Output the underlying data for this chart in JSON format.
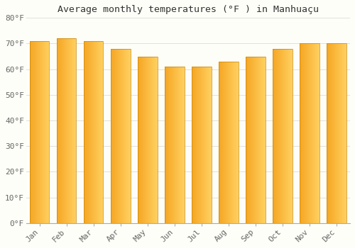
{
  "months": [
    "Jan",
    "Feb",
    "Mar",
    "Apr",
    "May",
    "Jun",
    "Jul",
    "Aug",
    "Sep",
    "Oct",
    "Nov",
    "Dec"
  ],
  "values": [
    71,
    72,
    71,
    68,
    65,
    61,
    61,
    63,
    65,
    68,
    70,
    70
  ],
  "title": "Average monthly temperatures (°F ) in Manhuaçu",
  "ylim": [
    0,
    80
  ],
  "yticks": [
    0,
    10,
    20,
    30,
    40,
    50,
    60,
    70,
    80
  ],
  "ytick_labels": [
    "0°F",
    "10°F",
    "20°F",
    "30°F",
    "40°F",
    "50°F",
    "60°F",
    "70°F",
    "80°F"
  ],
  "bar_color_left": "#F5A623",
  "bar_color_right": "#FFD060",
  "background_color": "#FEFEF8",
  "grid_color": "#E0E0E0",
  "title_fontsize": 9.5,
  "tick_fontsize": 8,
  "bar_width": 0.72,
  "bar_edge_color": "#C8860A"
}
